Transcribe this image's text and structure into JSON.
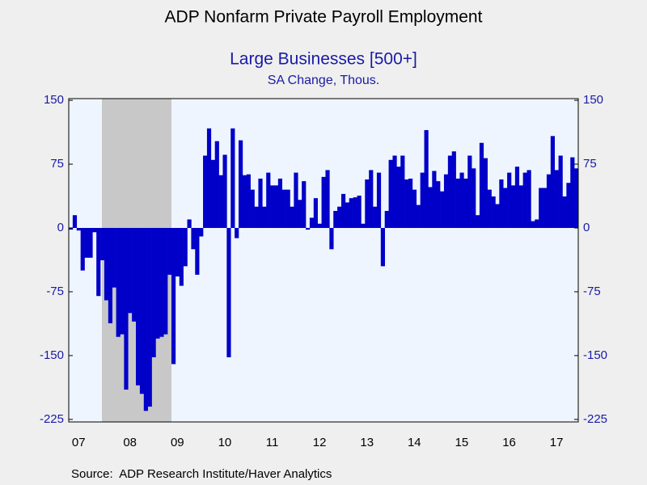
{
  "chart_data": {
    "type": "bar",
    "title": "ADP Nonfarm Private Payroll Employment",
    "subtitle": "Large Businesses [500+]",
    "y_label": "SA Change, Thous.",
    "source": "Source:  ADP Research Institute/Haver Analytics",
    "color": "#0000c8",
    "ylim": [
      -228,
      152
    ],
    "yticks": [
      -225,
      -150,
      -75,
      0,
      75,
      150
    ],
    "categories": [
      null,
      null,
      "07",
      null,
      null,
      null,
      null,
      null,
      null,
      null,
      null,
      null,
      null,
      null,
      null,
      "08",
      null,
      null,
      null,
      null,
      null,
      null,
      null,
      null,
      null,
      null,
      null,
      "09",
      null,
      null,
      null,
      null,
      null,
      null,
      null,
      null,
      null,
      null,
      null,
      "10",
      null,
      null,
      null,
      null,
      null,
      null,
      null,
      null,
      null,
      null,
      null,
      "11",
      null,
      null,
      null,
      null,
      null,
      null,
      null,
      null,
      null,
      null,
      null,
      "12",
      null,
      null,
      null,
      null,
      null,
      null,
      null,
      null,
      null,
      null,
      null,
      "13",
      null,
      null,
      null,
      null,
      null,
      null,
      null,
      null,
      null,
      null,
      null,
      "14",
      null,
      null,
      null,
      null,
      null,
      null,
      null,
      null,
      null,
      null,
      null,
      "15",
      null,
      null,
      null,
      null,
      null,
      null,
      null,
      null,
      null,
      null,
      null,
      "16",
      null,
      null,
      null,
      null,
      null,
      null,
      null,
      null,
      null,
      null,
      null,
      "17",
      null,
      null,
      null,
      null,
      null
    ],
    "values": [
      -2,
      15,
      -3,
      -50,
      -35,
      -35,
      -5,
      -80,
      -38,
      -85,
      -112,
      -70,
      -128,
      -125,
      -190,
      -100,
      -110,
      -185,
      -195,
      -215,
      -210,
      -152,
      -130,
      -128,
      -125,
      -55,
      -160,
      -57,
      -68,
      -45,
      10,
      -25,
      -55,
      -10,
      85,
      117,
      80,
      102,
      62,
      86,
      -152,
      117,
      -12,
      103,
      62,
      63,
      45,
      25,
      58,
      25,
      65,
      50,
      50,
      58,
      45,
      45,
      25,
      65,
      33,
      55,
      -2,
      12,
      35,
      5,
      60,
      68,
      -25,
      20,
      25,
      40,
      30,
      35,
      36,
      38,
      5,
      57,
      68,
      25,
      65,
      -45,
      20,
      80,
      85,
      72,
      85,
      57,
      58,
      45,
      27,
      65,
      115,
      48,
      67,
      55,
      43,
      63,
      85,
      90,
      58,
      65,
      58,
      85,
      70,
      15,
      100,
      82,
      45,
      37,
      28,
      57,
      47,
      65,
      50,
      72,
      50,
      65,
      68,
      8,
      10,
      47,
      47,
      63,
      108,
      68,
      85,
      37,
      53,
      83,
      70
    ]
  }
}
